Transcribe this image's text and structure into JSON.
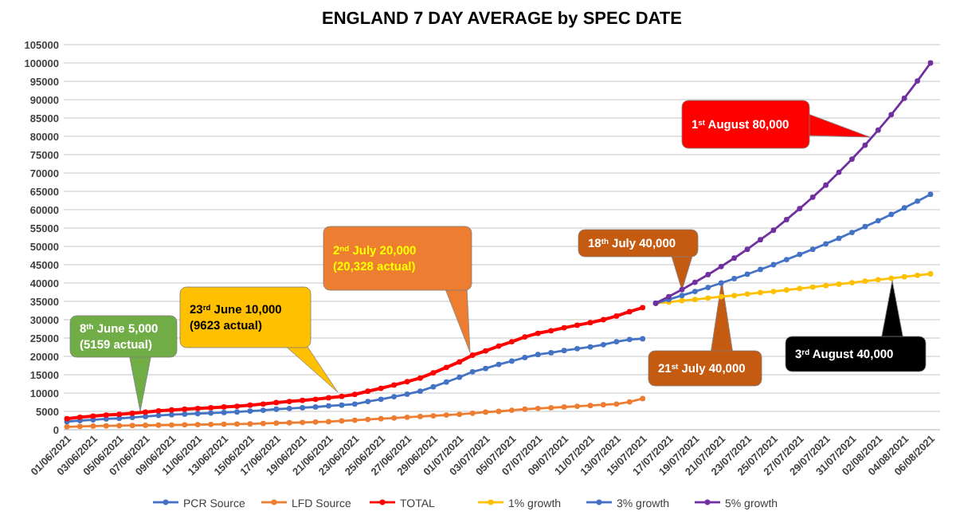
{
  "chart_data": {
    "type": "line",
    "title": "ENGLAND 7 DAY AVERAGE by SPEC DATE",
    "categories": [
      "01/06/2021",
      null,
      "03/06/2021",
      null,
      "05/06/2021",
      null,
      "07/06/2021",
      null,
      "09/06/2021",
      null,
      "11/06/2021",
      null,
      "13/06/2021",
      null,
      "15/06/2021",
      null,
      "17/06/2021",
      null,
      "19/06/2021",
      null,
      "21/06/2021",
      null,
      "23/06/2021",
      null,
      "25/06/2021",
      null,
      "27/06/2021",
      null,
      "29/06/2021",
      null,
      "01/07/2021",
      null,
      "03/07/2021",
      null,
      "05/07/2021",
      null,
      "07/07/2021",
      null,
      "09/07/2021",
      null,
      "11/07/2021",
      null,
      "13/07/2021",
      null,
      "15/07/2021",
      null,
      "17/07/2021",
      null,
      "19/07/2021",
      null,
      "21/07/2021",
      null,
      "23/07/2021",
      null,
      "25/07/2021",
      null,
      "27/07/2021",
      null,
      "29/07/2021",
      null,
      "31/07/2021",
      null,
      "02/08/2021",
      null,
      "04/08/2021",
      null,
      "06/08/2021"
    ],
    "series": [
      {
        "name": "PCR Source",
        "color": "#4472c4",
        "values": [
          2200,
          2500,
          2700,
          2950,
          3100,
          3350,
          3600,
          3900,
          4100,
          4250,
          4400,
          4550,
          4700,
          4850,
          5100,
          5300,
          5600,
          5800,
          6000,
          6200,
          6500,
          6700,
          7000,
          7700,
          8300,
          9000,
          9700,
          10500,
          11700,
          13000,
          14300,
          15800,
          16700,
          17800,
          18700,
          19700,
          20500,
          21000,
          21600,
          22100,
          22600,
          23200,
          24000,
          24600,
          24800,
          null,
          null,
          null,
          null,
          null,
          null,
          null,
          null,
          null,
          null,
          null,
          null,
          null,
          null,
          null,
          null,
          null,
          null,
          null,
          null,
          null,
          null
        ]
      },
      {
        "name": "LFD Source",
        "color": "#ed7d31",
        "values": [
          800,
          900,
          1000,
          1050,
          1100,
          1150,
          1200,
          1250,
          1300,
          1350,
          1400,
          1450,
          1500,
          1550,
          1600,
          1700,
          1800,
          1900,
          2000,
          2100,
          2200,
          2400,
          2600,
          2800,
          3000,
          3200,
          3400,
          3600,
          3800,
          4000,
          4200,
          4500,
          4800,
          5000,
          5300,
          5600,
          5800,
          6000,
          6200,
          6400,
          6600,
          6800,
          7000,
          7600,
          8500,
          null,
          null,
          null,
          null,
          null,
          null,
          null,
          null,
          null,
          null,
          null,
          null,
          null,
          null,
          null,
          null,
          null,
          null,
          null,
          null,
          null,
          null
        ]
      },
      {
        "name": "TOTAL",
        "color": "#ff0000",
        "values": [
          3000,
          3400,
          3700,
          4000,
          4200,
          4500,
          4800,
          5159,
          5400,
          5600,
          5800,
          6000,
          6200,
          6400,
          6700,
          7000,
          7400,
          7700,
          8000,
          8300,
          8700,
          9100,
          9623,
          10500,
          11300,
          12200,
          13100,
          14100,
          15500,
          17000,
          18500,
          20328,
          21500,
          22800,
          24000,
          25300,
          26300,
          27000,
          27800,
          28500,
          29200,
          30000,
          31000,
          32200,
          33300,
          null,
          null,
          null,
          null,
          null,
          null,
          null,
          null,
          null,
          null,
          null,
          null,
          null,
          null,
          null,
          null,
          null,
          null,
          null,
          null,
          null,
          null
        ]
      },
      {
        "name": "1% growth",
        "color": "#ffc000",
        "values": [
          null,
          null,
          null,
          null,
          null,
          null,
          null,
          null,
          null,
          null,
          null,
          null,
          null,
          null,
          null,
          null,
          null,
          null,
          null,
          null,
          null,
          null,
          null,
          null,
          null,
          null,
          null,
          null,
          null,
          null,
          null,
          null,
          null,
          null,
          null,
          null,
          null,
          null,
          null,
          null,
          null,
          null,
          null,
          null,
          null,
          34500,
          34800,
          35200,
          35500,
          35900,
          36300,
          36600,
          37000,
          37400,
          37700,
          38100,
          38500,
          38900,
          39300,
          39700,
          40100,
          40500,
          40900,
          41300,
          41700,
          42100,
          42500
        ]
      },
      {
        "name": "3% growth",
        "color": "#4472c4",
        "values": [
          null,
          null,
          null,
          null,
          null,
          null,
          null,
          null,
          null,
          null,
          null,
          null,
          null,
          null,
          null,
          null,
          null,
          null,
          null,
          null,
          null,
          null,
          null,
          null,
          null,
          null,
          null,
          null,
          null,
          null,
          null,
          null,
          null,
          null,
          null,
          null,
          null,
          null,
          null,
          null,
          null,
          null,
          null,
          null,
          null,
          34500,
          35500,
          36600,
          37700,
          38800,
          40000,
          41200,
          42400,
          43700,
          45000,
          46400,
          47800,
          49200,
          50700,
          52200,
          53800,
          55400,
          57000,
          58700,
          60500,
          62300,
          64200
        ]
      },
      {
        "name": "5% growth",
        "color": "#7030a0",
        "values": [
          null,
          null,
          null,
          null,
          null,
          null,
          null,
          null,
          null,
          null,
          null,
          null,
          null,
          null,
          null,
          null,
          null,
          null,
          null,
          null,
          null,
          null,
          null,
          null,
          null,
          null,
          null,
          null,
          null,
          null,
          null,
          null,
          null,
          null,
          null,
          null,
          null,
          null,
          null,
          null,
          null,
          null,
          null,
          null,
          null,
          34500,
          36300,
          38200,
          40200,
          42300,
          44500,
          46800,
          49200,
          51800,
          54400,
          57300,
          60300,
          63400,
          66700,
          70200,
          73800,
          77600,
          81700,
          85900,
          90400,
          95100,
          100000
        ]
      }
    ],
    "ylim": [
      0,
      105000
    ],
    "yticks": [
      0,
      5000,
      10000,
      15000,
      20000,
      25000,
      30000,
      35000,
      40000,
      45000,
      50000,
      55000,
      60000,
      65000,
      70000,
      75000,
      80000,
      85000,
      90000,
      95000,
      100000,
      105000
    ],
    "grid": "y",
    "legend": "bottom",
    "marker": "circle",
    "annotations": [
      "8$^{th}$ June 5,000\n(5159 actual)",
      "23$^{rd}$ June 10,000\n(9623 actual)",
      "2$^{nd}$ July 20,000\n(20,328 actual)",
      "18$^{th}$  July 40,000",
      "1$^{st}$ August 80,000",
      "21$^{st}$ July 40,000",
      "3$^{rd}$ August 40,000"
    ]
  }
}
